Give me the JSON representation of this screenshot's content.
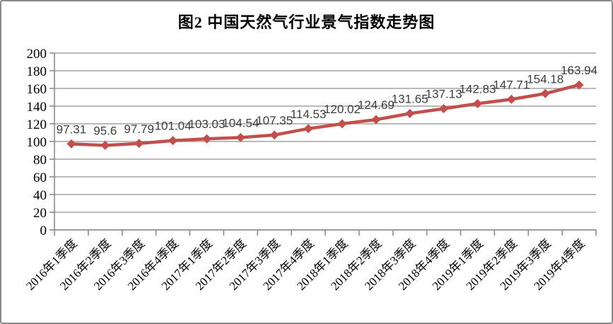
{
  "title": "图2 中国天然气行业景气指数走势图",
  "colors": {
    "line": "#C0504D",
    "marker": "#C0504D",
    "grid": "#A3A3A3",
    "axis": "#8C8C8C",
    "axis_text": "#000000",
    "data_label_text": "#3D3D3D",
    "frame_border": "#8A8A8A",
    "background": "#FFFFFF"
  },
  "chart_data": {
    "type": "line",
    "title": "图2 中国天然气行业景气指数走势图",
    "categories": [
      "2016年1季度",
      "2016年2季度",
      "2016年3季度",
      "2016年4季度",
      "2017年1季度",
      "2017年2季度",
      "2017年3季度",
      "2017年4季度",
      "2018年1季度",
      "2018年2季度",
      "2018年3季度",
      "2018年4季度",
      "2019年1季度",
      "2019年2季度",
      "2019年3季度",
      "2019年4季度"
    ],
    "values": [
      97.31,
      95.6,
      97.79,
      101.04,
      103.03,
      104.54,
      107.35,
      114.53,
      120.02,
      124.69,
      131.65,
      137.13,
      142.83,
      147.71,
      154.18,
      163.94
    ],
    "data_labels": [
      "97.31",
      "95.6",
      "97.79",
      "101.04",
      "103.03",
      "104.54",
      "107.35",
      "114.53",
      "120.02",
      "124.69",
      "131.65",
      "137.13",
      "142.83",
      "147.71",
      "154.18",
      "163.94"
    ],
    "xlabel": "",
    "ylabel": "",
    "ylim": [
      0,
      200
    ],
    "ytick_interval": 20,
    "ytick_labels": [
      "0",
      "20",
      "40",
      "60",
      "80",
      "100",
      "120",
      "140",
      "160",
      "180",
      "200"
    ],
    "grid": "horizontal",
    "legend": "none",
    "marker": "diamond",
    "x_label_rotation_deg": -45
  }
}
